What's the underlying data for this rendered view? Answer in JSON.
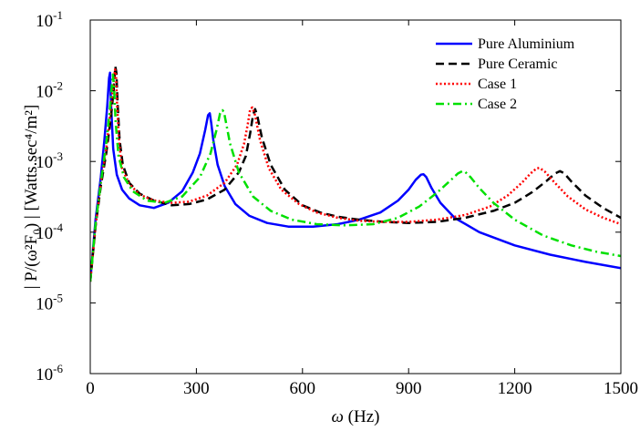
{
  "chart_data": {
    "type": "line",
    "title": "",
    "xlabel_symbol": "ω",
    "xlabel_unit": " (Hz)",
    "ylabel": "| P/(ω²F₀) | [Watts.sec⁴/m²]",
    "xlim": [
      0,
      1500
    ],
    "ylim": [
      1e-06,
      0.1
    ],
    "yscale": "log",
    "grid": false,
    "legend_position": "top-right",
    "x_ticks": [
      0,
      300,
      600,
      900,
      1200,
      1500
    ],
    "y_ticks": [
      {
        "value": 1e-06,
        "base": "10",
        "exp": "-6"
      },
      {
        "value": 1e-05,
        "base": "10",
        "exp": "-5"
      },
      {
        "value": 0.0001,
        "base": "10",
        "exp": "-4"
      },
      {
        "value": 0.001,
        "base": "10",
        "exp": "-3"
      },
      {
        "value": 0.01,
        "base": "10",
        "exp": "-2"
      },
      {
        "value": 0.1,
        "base": "10",
        "exp": "-1"
      }
    ],
    "series": [
      {
        "name": "Pure Aluminium",
        "color": "#0000ff",
        "style": "solid",
        "x": [
          0,
          15,
          30,
          40,
          48,
          53,
          56,
          59,
          65,
          75,
          90,
          110,
          140,
          180,
          220,
          260,
          290,
          310,
          325,
          333,
          338,
          342,
          348,
          360,
          380,
          410,
          450,
          500,
          560,
          630,
          700,
          760,
          820,
          870,
          900,
          920,
          935,
          942,
          950,
          965,
          990,
          1030,
          1100,
          1200,
          1300,
          1400,
          1500
        ],
        "y": [
          2e-05,
          0.00015,
          0.0006,
          0.002,
          0.006,
          0.015,
          0.018,
          0.006,
          0.0015,
          0.00065,
          0.0004,
          0.0003,
          0.00024,
          0.00022,
          0.00026,
          0.00038,
          0.0007,
          0.0013,
          0.0028,
          0.0045,
          0.0048,
          0.0035,
          0.002,
          0.0009,
          0.00045,
          0.00025,
          0.00017,
          0.000135,
          0.00012,
          0.00012,
          0.00013,
          0.00015,
          0.00019,
          0.00028,
          0.0004,
          0.00055,
          0.00065,
          0.00066,
          0.0006,
          0.00042,
          0.00026,
          0.00016,
          0.0001,
          6.5e-05,
          4.8e-05,
          3.8e-05,
          3.1e-05
        ]
      },
      {
        "name": "Pure Ceramic",
        "color": "#000000",
        "style": "dashed",
        "x": [
          0,
          15,
          30,
          45,
          58,
          66,
          71,
          74,
          77,
          83,
          92,
          110,
          140,
          180,
          230,
          280,
          330,
          380,
          420,
          440,
          452,
          460,
          466,
          472,
          485,
          510,
          550,
          600,
          650,
          700,
          760,
          830,
          900,
          980,
          1060,
          1140,
          1200,
          1250,
          1290,
          1315,
          1328,
          1340,
          1360,
          1400,
          1450,
          1500
        ],
        "y": [
          2e-05,
          0.00012,
          0.00045,
          0.0013,
          0.004,
          0.01,
          0.022,
          0.018,
          0.007,
          0.002,
          0.0009,
          0.0005,
          0.00035,
          0.00028,
          0.00024,
          0.00025,
          0.00029,
          0.0004,
          0.0007,
          0.0012,
          0.0025,
          0.0045,
          0.0055,
          0.0045,
          0.0022,
          0.0009,
          0.0004,
          0.00024,
          0.00019,
          0.000165,
          0.00015,
          0.00014,
          0.000135,
          0.00014,
          0.00016,
          0.0002,
          0.00026,
          0.00037,
          0.00053,
          0.00068,
          0.00073,
          0.00068,
          0.00052,
          0.00033,
          0.00022,
          0.00016
        ]
      },
      {
        "name": "Case 1",
        "color": "#ff0000",
        "style": "dotted",
        "x": [
          0,
          15,
          30,
          45,
          57,
          65,
          70,
          73,
          76,
          82,
          90,
          110,
          140,
          180,
          230,
          280,
          330,
          380,
          415,
          435,
          446,
          452,
          458,
          466,
          480,
          505,
          540,
          590,
          640,
          700,
          760,
          830,
          900,
          980,
          1060,
          1130,
          1180,
          1220,
          1245,
          1262,
          1270,
          1285,
          1310,
          1350,
          1400,
          1450,
          1500
        ],
        "y": [
          2e-05,
          0.00012,
          0.0005,
          0.0015,
          0.005,
          0.012,
          0.02,
          0.016,
          0.006,
          0.0018,
          0.0008,
          0.00048,
          0.00034,
          0.00028,
          0.00026,
          0.00027,
          0.00033,
          0.0005,
          0.0009,
          0.0018,
          0.0035,
          0.0055,
          0.0058,
          0.0045,
          0.002,
          0.0008,
          0.0004,
          0.00025,
          0.00019,
          0.00016,
          0.000145,
          0.00014,
          0.00014,
          0.00015,
          0.000175,
          0.00023,
          0.00033,
          0.0005,
          0.00068,
          0.0008,
          0.00081,
          0.00072,
          0.00052,
          0.00032,
          0.00021,
          0.00016,
          0.00013
        ]
      },
      {
        "name": "Case 2",
        "color": "#00e000",
        "style": "dashdot",
        "x": [
          0,
          15,
          30,
          45,
          55,
          61,
          64,
          67,
          72,
          80,
          95,
          120,
          160,
          210,
          260,
          310,
          340,
          357,
          367,
          374,
          378,
          384,
          395,
          420,
          460,
          510,
          570,
          640,
          720,
          800,
          870,
          930,
          980,
          1015,
          1040,
          1052,
          1060,
          1075,
          1100,
          1140,
          1200,
          1280,
          1360,
          1430,
          1500
        ],
        "y": [
          2e-05,
          0.00013,
          0.0005,
          0.0018,
          0.005,
          0.012,
          0.017,
          0.012,
          0.0035,
          0.0012,
          0.0006,
          0.00038,
          0.00028,
          0.00026,
          0.00032,
          0.0006,
          0.0013,
          0.0028,
          0.0048,
          0.0053,
          0.005,
          0.0035,
          0.0018,
          0.0007,
          0.00032,
          0.0002,
          0.00015,
          0.00013,
          0.000125,
          0.00013,
          0.00016,
          0.00023,
          0.00036,
          0.00052,
          0.00068,
          0.00073,
          0.00071,
          0.0006,
          0.00042,
          0.00026,
          0.00015,
          9e-05,
          6.5e-05,
          5.3e-05,
          4.6e-05
        ]
      }
    ]
  }
}
